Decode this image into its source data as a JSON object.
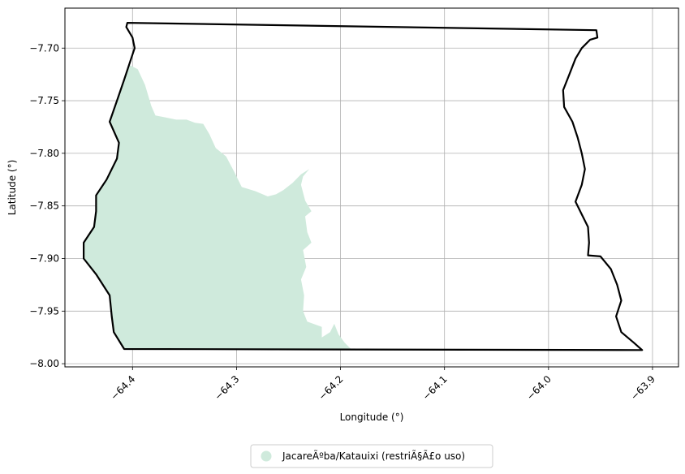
{
  "chart_data": {
    "type": "map",
    "xlabel": "Longitude (°)",
    "ylabel": "Latitude (°)",
    "xlim": [
      -64.465,
      -63.875
    ],
    "ylim": [
      -8.003,
      -7.662
    ],
    "xticks": [
      -64.4,
      -64.3,
      -64.2,
      -64.1,
      -64.0,
      -63.9
    ],
    "xtick_labels": [
      "−64.4",
      "−64.3",
      "−64.2",
      "−64.1",
      "−64.0",
      "−63.9"
    ],
    "yticks": [
      -7.7,
      -7.75,
      -7.8,
      -7.85,
      -7.9,
      -7.95,
      -8.0
    ],
    "ytick_labels": [
      "−7.70",
      "−7.75",
      "−7.80",
      "−7.85",
      "−7.90",
      "−7.95",
      "−8.00"
    ],
    "grid": true,
    "legend": {
      "placement": "bottom-center",
      "entries": [
        {
          "label": "JacareÃºba/Katauixi (restriÃ§Ã£o uso)",
          "color": "#cfeadc"
        }
      ]
    },
    "boundary": {
      "color": "#000000",
      "coords": [
        [
          -64.405,
          -7.676
        ],
        [
          -63.954,
          -7.683
        ],
        [
          -63.953,
          -7.69
        ],
        [
          -63.96,
          -7.692
        ],
        [
          -63.968,
          -7.7
        ],
        [
          -63.974,
          -7.71
        ],
        [
          -63.98,
          -7.725
        ],
        [
          -63.986,
          -7.74
        ],
        [
          -63.985,
          -7.756
        ],
        [
          -63.977,
          -7.77
        ],
        [
          -63.972,
          -7.785
        ],
        [
          -63.968,
          -7.8
        ],
        [
          -63.965,
          -7.815
        ],
        [
          -63.968,
          -7.83
        ],
        [
          -63.974,
          -7.846
        ],
        [
          -63.968,
          -7.858
        ],
        [
          -63.962,
          -7.87
        ],
        [
          -63.961,
          -7.885
        ],
        [
          -63.962,
          -7.897
        ],
        [
          -63.95,
          -7.898
        ],
        [
          -63.94,
          -7.91
        ],
        [
          -63.934,
          -7.925
        ],
        [
          -63.93,
          -7.94
        ],
        [
          -63.935,
          -7.955
        ],
        [
          -63.93,
          -7.97
        ],
        [
          -63.918,
          -7.98
        ],
        [
          -63.91,
          -7.987
        ],
        [
          -64.408,
          -7.986
        ],
        [
          -64.418,
          -7.97
        ],
        [
          -64.42,
          -7.955
        ],
        [
          -64.422,
          -7.935
        ],
        [
          -64.435,
          -7.915
        ],
        [
          -64.447,
          -7.9
        ],
        [
          -64.447,
          -7.885
        ],
        [
          -64.437,
          -7.87
        ],
        [
          -64.435,
          -7.855
        ],
        [
          -64.435,
          -7.84
        ],
        [
          -64.425,
          -7.825
        ],
        [
          -64.415,
          -7.805
        ],
        [
          -64.413,
          -7.79
        ],
        [
          -64.422,
          -7.77
        ],
        [
          -64.415,
          -7.75
        ],
        [
          -64.408,
          -7.73
        ],
        [
          -64.402,
          -7.712
        ],
        [
          -64.398,
          -7.7
        ],
        [
          -64.4,
          -7.69
        ],
        [
          -64.406,
          -7.68
        ]
      ]
    },
    "area": {
      "name": "JacareÃºba/Katauixi (restriÃ§Ã£o uso)",
      "color": "#cfeadc",
      "coords": [
        [
          -64.403,
          -7.716
        ],
        [
          -64.395,
          -7.72
        ],
        [
          -64.388,
          -7.735
        ],
        [
          -64.382,
          -7.755
        ],
        [
          -64.378,
          -7.764
        ],
        [
          -64.368,
          -7.766
        ],
        [
          -64.358,
          -7.768
        ],
        [
          -64.348,
          -7.768
        ],
        [
          -64.34,
          -7.771
        ],
        [
          -64.332,
          -7.772
        ],
        [
          -64.326,
          -7.782
        ],
        [
          -64.32,
          -7.795
        ],
        [
          -64.31,
          -7.803
        ],
        [
          -64.302,
          -7.818
        ],
        [
          -64.295,
          -7.832
        ],
        [
          -64.282,
          -7.836
        ],
        [
          -64.27,
          -7.841
        ],
        [
          -64.262,
          -7.839
        ],
        [
          -64.255,
          -7.835
        ],
        [
          -64.246,
          -7.828
        ],
        [
          -64.238,
          -7.82
        ],
        [
          -64.23,
          -7.815
        ],
        [
          -64.236,
          -7.822
        ],
        [
          -64.238,
          -7.83
        ],
        [
          -64.234,
          -7.845
        ],
        [
          -64.228,
          -7.855
        ],
        [
          -64.234,
          -7.86
        ],
        [
          -64.232,
          -7.875
        ],
        [
          -64.228,
          -7.885
        ],
        [
          -64.236,
          -7.892
        ],
        [
          -64.233,
          -7.908
        ],
        [
          -64.238,
          -7.92
        ],
        [
          -64.235,
          -7.935
        ],
        [
          -64.236,
          -7.95
        ],
        [
          -64.232,
          -7.96
        ],
        [
          -64.218,
          -7.965
        ],
        [
          -64.218,
          -7.975
        ],
        [
          -64.21,
          -7.97
        ],
        [
          -64.206,
          -7.962
        ],
        [
          -64.202,
          -7.972
        ],
        [
          -64.196,
          -7.98
        ],
        [
          -64.19,
          -7.986
        ],
        [
          -64.408,
          -7.986
        ],
        [
          -64.418,
          -7.97
        ],
        [
          -64.42,
          -7.955
        ],
        [
          -64.422,
          -7.935
        ],
        [
          -64.435,
          -7.915
        ],
        [
          -64.447,
          -7.9
        ],
        [
          -64.447,
          -7.885
        ],
        [
          -64.437,
          -7.87
        ],
        [
          -64.435,
          -7.855
        ],
        [
          -64.435,
          -7.84
        ],
        [
          -64.425,
          -7.825
        ],
        [
          -64.415,
          -7.805
        ],
        [
          -64.413,
          -7.79
        ],
        [
          -64.422,
          -7.77
        ],
        [
          -64.415,
          -7.75
        ],
        [
          -64.408,
          -7.73
        ]
      ]
    }
  }
}
